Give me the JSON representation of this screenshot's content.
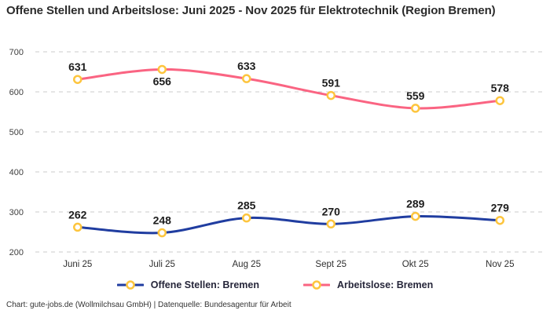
{
  "title": "Offene Stellen und Arbeitslose: Juni 2025 - Nov 2025 für Elektrotechnik (Region Bremen)",
  "footer": "Chart: gute-jobs.de (Wollmilchsau GmbH) | Datenquelle: Bundesagentur für Arbeit",
  "colors": {
    "offene_stellen": "#203da0",
    "arbeitslose": "#fa6482",
    "marker_stroke": "#fdc53e",
    "grid": "#cbcbcb",
    "text": "#1d1d1d"
  },
  "chart_data": {
    "type": "line",
    "title": "Offene Stellen und Arbeitslose: Juni 2025 - Nov 2025 für Elektrotechnik (Region Bremen)",
    "categories": [
      "Juni 25",
      "Juli 25",
      "Aug 25",
      "Sept 25",
      "Okt 25",
      "Nov 25"
    ],
    "series": [
      {
        "name": "Offene Stellen: Bremen",
        "color": "#203da0",
        "values": [
          262,
          248,
          285,
          270,
          289,
          279
        ],
        "label_positions": [
          "above",
          "above",
          "above",
          "above",
          "above",
          "above"
        ]
      },
      {
        "name": "Arbeitslose: Bremen",
        "color": "#fa6482",
        "values": [
          631,
          656,
          633,
          591,
          559,
          578
        ],
        "label_positions": [
          "above",
          "below",
          "above",
          "above",
          "above",
          "above"
        ]
      }
    ],
    "ylim": [
      200,
      700
    ],
    "yticks": [
      200,
      300,
      400,
      500,
      600,
      700
    ],
    "grid": true,
    "grid_style": "dashed",
    "legend_position": "bottom",
    "marker": {
      "shape": "circle",
      "fill": "#ffffff",
      "stroke": "#fdc53e"
    }
  }
}
